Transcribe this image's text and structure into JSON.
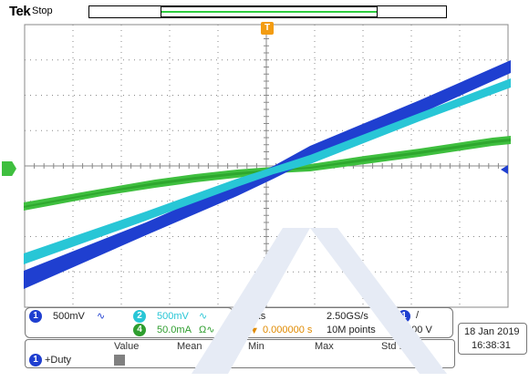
{
  "header": {
    "brand": "Tek",
    "run_status": "Stop",
    "trigger_marker": "T"
  },
  "colors": {
    "ch1": "#1f3fd0",
    "ch2": "#28c6d6",
    "ch4": "#3fbf3f",
    "trigger": "#f39c12",
    "grid": "#888888"
  },
  "channels": [
    {
      "number": "1",
      "scale": "500mV",
      "coupling_icon": "ac-coupling-icon",
      "coupling_glyph": "∿"
    },
    {
      "number": "2",
      "scale": "500mV",
      "coupling_icon": "ac-coupling-icon",
      "coupling_glyph": "∿"
    },
    {
      "number": "4",
      "scale": "50.0mA",
      "coupling_icon": "current-probe-icon",
      "coupling_glyph": "Ω∿"
    }
  ],
  "horizontal": {
    "time_div": "400µs",
    "sample_rate": "2.50GS/s",
    "trigger_position": "0.000000 s",
    "record_length": "10M points",
    "trigger_channel": "1",
    "trigger_slope_glyph": "/",
    "trigger_level": "0.00 V"
  },
  "datetime": {
    "date": "18 Jan  2019",
    "time": "16:38:31"
  },
  "measurements": {
    "headers": [
      "Value",
      "Mean",
      "Min",
      "Max",
      "Std Dev"
    ],
    "rows": [
      {
        "channel": "1",
        "label": "+Duty"
      }
    ]
  }
}
